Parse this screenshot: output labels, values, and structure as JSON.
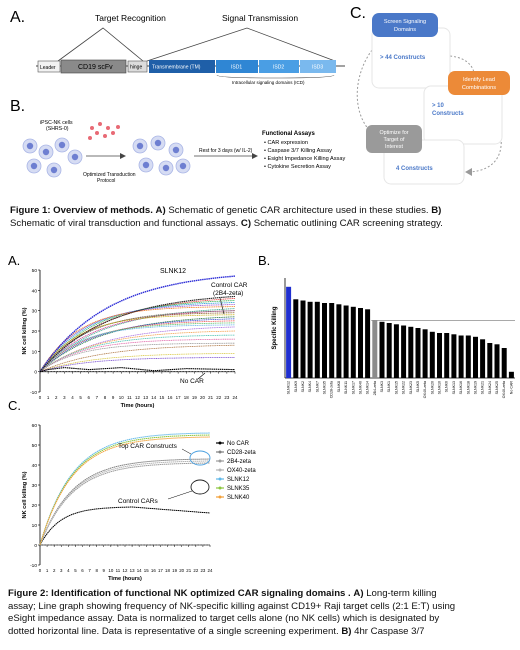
{
  "fig1": {
    "panel_a": {
      "letter": "A.",
      "target_recognition": "Target Recognition",
      "signal_transmission": "Signal Transmission",
      "segments": [
        "Leader",
        "CD19 scFv",
        "hinge",
        "Transmembrane (TM)",
        "ISD1",
        "ISD2",
        "ISD3"
      ],
      "icd_label": "Intracellular signaling domains (ICD)"
    },
    "panel_b": {
      "letter": "B.",
      "cells_label_1": "iPSC-NK cells",
      "cells_label_2": "(SHRS-0)",
      "transduction_1": "Optimized Transduction",
      "transduction_2": "Protocol",
      "rest": "Rest for 3 days (w/ IL-2)",
      "assays_title": "Functional Assays",
      "assays": [
        "CAR expression",
        "Caspase 3/7 Killing Assay",
        "Esight Impedance Killing Assay",
        "Cytokine Secretion Assay"
      ]
    },
    "panel_c": {
      "letter": "C.",
      "box1_title_1": "Screen Signaling",
      "box1_title_2": "Domains",
      "box1_count": "> 44 Constructs",
      "box2_title_1": "Identify Lead",
      "box2_title_2": "Combinations",
      "box2_count_1": "> 10",
      "box2_count_2": "Constructs",
      "box3_title_1": "Optimize for",
      "box3_title_2": "Target of",
      "box3_title_3": "Interest",
      "box3_count": "4 Constructs"
    },
    "caption": {
      "label": "Figure 1: Overview of methods.",
      "a": "A)",
      "a_text": "Schematic of genetic CAR architecture used in these studies.",
      "b": "B)",
      "b_text": "Schematic of viral transduction and functional assays.",
      "c": "C)",
      "c_text": "Schematic outlining CAR screening strategy."
    }
  },
  "fig2": {
    "panel_a": {
      "letter": "A.",
      "slnk12": "SLNK12",
      "control_1": "Control CAR",
      "control_2": "(2B4-zeta)",
      "no_car": "No CAR"
    },
    "panel_b": {
      "letter": "B."
    },
    "panel_c": {
      "letter": "C.",
      "top_label": "Top CAR Constructs",
      "control_label": "Control CARs",
      "legend": [
        {
          "name": "No CAR",
          "color": "#000000"
        },
        {
          "name": "CD28-zeta",
          "color": "#7f7f7f"
        },
        {
          "name": "2B4-zeta",
          "color": "#9c9c9c"
        },
        {
          "name": "OX40-zeta",
          "color": "#b4b4b4"
        },
        {
          "name": "SLNK12",
          "color": "#5fb8e8"
        },
        {
          "name": "SLNK35",
          "color": "#8cc63f"
        },
        {
          "name": "SLNK40",
          "color": "#f2a13a"
        }
      ]
    },
    "caption": {
      "label": "Figure 2: Identification of functional NK optimized CAR signaling domains .",
      "a": "A)",
      "text_1": "Long-term killing",
      "text_2": "assay; Line graph showing frequency of NK-specific killing against CD19+ Raji target cells (2:1 E:T) using",
      "text_3": "eSight impedance assay. Data is normalized to target cells alone (no NK cells) which is designated by",
      "text_4": "dotted horizontal line. Data is representative of a single screening experiment.",
      "b": "B)",
      "text_5": "4hr Caspase 3/7"
    }
  },
  "chart_data": [
    {
      "type": "line",
      "panel": "A",
      "xlabel": "Time (hours)",
      "ylabel": "NK cell killing (%)",
      "xlim": [
        0,
        24
      ],
      "ylim": [
        -10,
        50
      ],
      "x_ticks": [
        0,
        1,
        2,
        3,
        4,
        5,
        6,
        7,
        8,
        9,
        10,
        11,
        12,
        13,
        14,
        15,
        16,
        17,
        18,
        19,
        20,
        21,
        22,
        23,
        24
      ],
      "y_ticks": [
        -10,
        0,
        10,
        20,
        30,
        40,
        50
      ],
      "series": [
        {
          "name": "SLNK12",
          "color": "#2b2bd6",
          "final": 47
        },
        {
          "name": "Control CAR (2B4-zeta)",
          "color": "#222222",
          "final": 37
        },
        {
          "name": "No CAR",
          "color": "#000000",
          "final": 1
        }
      ],
      "reference_line": 0,
      "other_construct_finals": [
        36,
        35,
        34,
        33,
        32,
        31,
        30,
        30,
        29,
        28,
        27,
        26,
        25,
        24,
        23,
        22,
        20,
        18,
        16,
        14,
        13,
        9,
        7
      ]
    },
    {
      "type": "bar",
      "panel": "B",
      "ylabel": "Specific Killing",
      "categories": [
        "SLNK12",
        "SLNK9",
        "SLNK2",
        "SLNK4",
        "SLNK7",
        "SLNK35",
        "CD28-zeta",
        "SLNK8",
        "SLNK11",
        "SLNK17",
        "SLNK40",
        "SLNK14",
        "2B4-zeta",
        "SLNK3",
        "SLNK1",
        "SLNK15",
        "SLNK22",
        "SLNK23",
        "SLNK5",
        "OX40-zeta",
        "SLNK20",
        "SLNK10",
        "SLNK6",
        "SLNK13",
        "SLNK16",
        "SLNK18",
        "SLNK19",
        "SLNK21",
        "SLNK24",
        "SLNK25",
        "OX40-zeta",
        "No CAR"
      ],
      "values": [
        73,
        63,
        62,
        61,
        61,
        60,
        60,
        59,
        58,
        57,
        56,
        55,
        46,
        45,
        44,
        43,
        42,
        41,
        40,
        39,
        37,
        36,
        36,
        35,
        34,
        34,
        33,
        31,
        28,
        27,
        24,
        5
      ],
      "colors": {
        "highlight": "#1f2fd0",
        "control": "#8c8c8c",
        "default": "#000000"
      },
      "highlight_index": 0,
      "control_index": 12,
      "reference_line": 46,
      "ylim": [
        0,
        80
      ]
    },
    {
      "type": "line",
      "panel": "C",
      "xlabel": "Time (hours)",
      "ylabel": "NK cell killing (%)",
      "xlim": [
        0,
        24
      ],
      "ylim": [
        -10,
        60
      ],
      "x_ticks": [
        0,
        1,
        2,
        3,
        4,
        5,
        6,
        7,
        8,
        9,
        10,
        11,
        12,
        13,
        14,
        15,
        16,
        17,
        18,
        19,
        20,
        21,
        22,
        23,
        24
      ],
      "y_ticks": [
        -10,
        0,
        10,
        20,
        30,
        40,
        50,
        60
      ],
      "series": [
        {
          "name": "No CAR",
          "color": "#000000",
          "final": 16,
          "peak": 19
        },
        {
          "name": "CD28-zeta",
          "color": "#7f7f7f",
          "final": 43
        },
        {
          "name": "2B4-zeta",
          "color": "#9c9c9c",
          "final": 41
        },
        {
          "name": "OX40-zeta",
          "color": "#b4b4b4",
          "final": 42
        },
        {
          "name": "SLNK12",
          "color": "#5fb8e8",
          "final": 56
        },
        {
          "name": "SLNK35",
          "color": "#8cc63f",
          "final": 55
        },
        {
          "name": "SLNK40",
          "color": "#f2a13a",
          "final": 54
        }
      ]
    }
  ]
}
